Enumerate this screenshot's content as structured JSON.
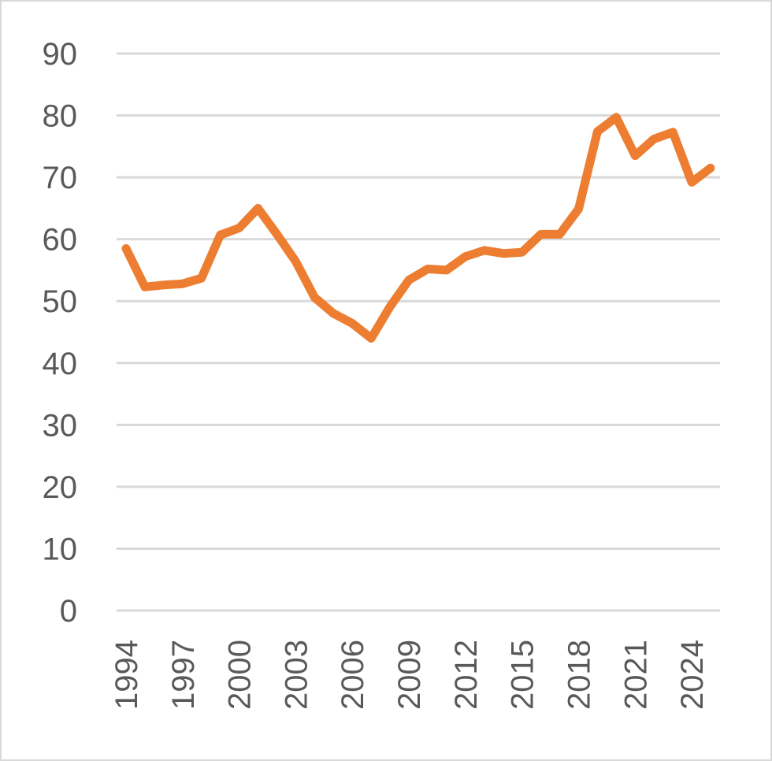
{
  "chart_data": {
    "type": "line",
    "title": "",
    "xlabel": "",
    "ylabel": "",
    "ylim": [
      0,
      90
    ],
    "yticks": [
      0,
      10,
      20,
      30,
      40,
      50,
      60,
      70,
      80,
      90
    ],
    "xtick_labels": [
      "1994",
      "1997",
      "2000",
      "2003",
      "2006",
      "2009",
      "2012",
      "2015",
      "2018",
      "2021",
      "2024"
    ],
    "grid": true,
    "legend": "none",
    "line_color": "#ed7d31",
    "grid_color": "#d9d9d9",
    "series": [
      {
        "x": [
          1994,
          1995,
          1996,
          1997,
          1998,
          1999,
          2000,
          2001,
          2002,
          2003,
          2004,
          2005,
          2006,
          2007,
          2008,
          2009,
          2010,
          2011,
          2012,
          2013,
          2014,
          2015,
          2016,
          2017,
          2018,
          2019,
          2020,
          2021,
          2022,
          2023,
          2024,
          2025
        ],
        "values": [
          58.5,
          52.3,
          52.6,
          52.8,
          53.7,
          60.7,
          61.8,
          65.0,
          60.8,
          56.4,
          50.6,
          48.0,
          46.4,
          44.0,
          49.1,
          53.4,
          55.2,
          55.0,
          57.2,
          58.2,
          57.7,
          57.9,
          60.8,
          60.8,
          64.9,
          77.4,
          79.7,
          73.5,
          76.2,
          77.3,
          69.2,
          71.5
        ]
      }
    ]
  }
}
